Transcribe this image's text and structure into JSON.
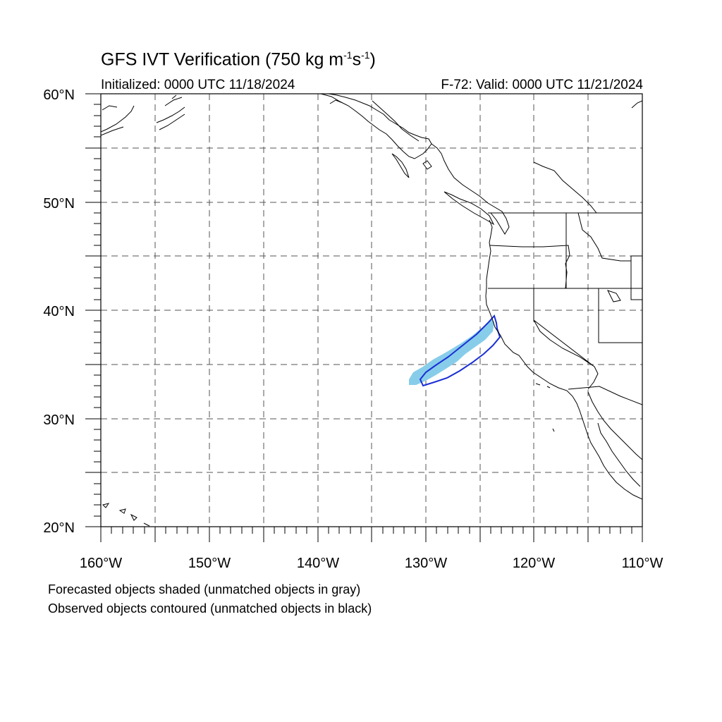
{
  "title": {
    "prefix": "GFS IVT Verification (750 kg m",
    "exp1": "-1",
    "mid": "s",
    "exp2": "-1",
    "suffix": ")"
  },
  "initialized": "Initialized: 0000 UTC 11/18/2024",
  "valid": "F-72: Valid: 0000 UTC 11/21/2024",
  "notes": [
    "Forecasted objects shaded (unmatched objects in gray)",
    "Observed objects contoured (unmatched objects in black)"
  ],
  "map": {
    "lon_range": [
      -160,
      -110
    ],
    "lat_range": [
      20,
      60
    ],
    "lon_labels": [
      "160°W",
      "150°W",
      "140°W",
      "130°W",
      "120°W",
      "110°W"
    ],
    "lat_labels": [
      "20°N",
      "30°N",
      "40°N",
      "50°N",
      "60°N"
    ],
    "gridlines": "dashed every 5 degrees",
    "colors": {
      "forecast_fill": "#87cdea",
      "observed_contour": "#1a2fd6",
      "coastline": "#000000",
      "grid": "#555555"
    }
  }
}
